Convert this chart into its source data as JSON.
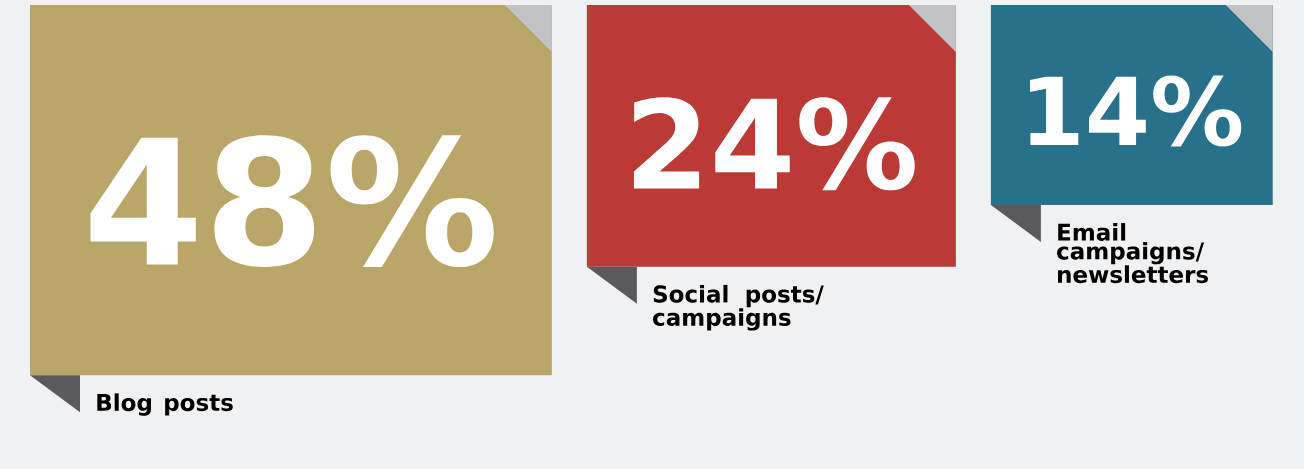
{
  "chart_data": {
    "type": "other",
    "categories": [
      "Blog posts",
      "Social posts/ campaigns",
      "Email campaigns/ newsletters"
    ],
    "values": [
      48,
      24,
      14
    ],
    "value_labels": [
      "48%",
      "24%",
      "14%"
    ],
    "colors": [
      "#bba66a",
      "#bb3a35",
      "#27728a"
    ]
  }
}
